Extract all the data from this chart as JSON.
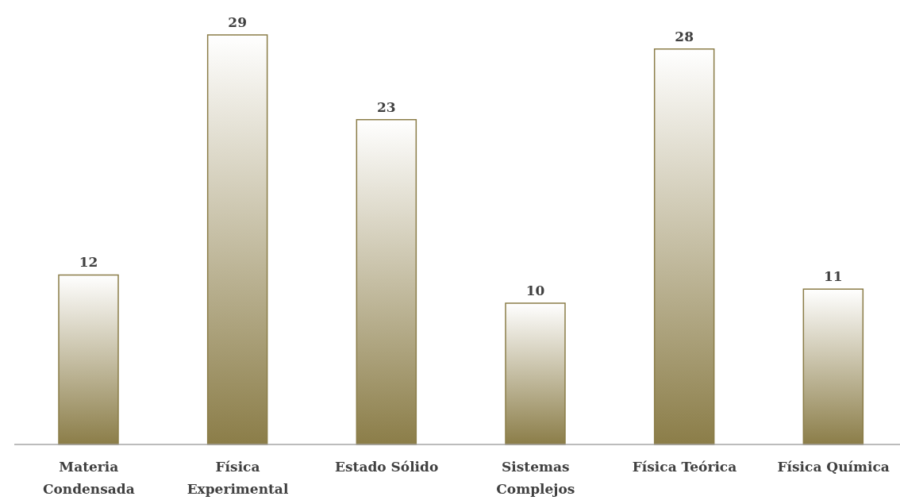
{
  "chart_data": {
    "type": "bar",
    "categories": [
      "Materia Condensada",
      "Física Experimental",
      "Estado Sólido",
      "Sistemas Complejos",
      "Física Teórica",
      "Física Química"
    ],
    "values": [
      12,
      29,
      23,
      10,
      28,
      11
    ],
    "color": "#8b7d48",
    "data_labels": true
  }
}
